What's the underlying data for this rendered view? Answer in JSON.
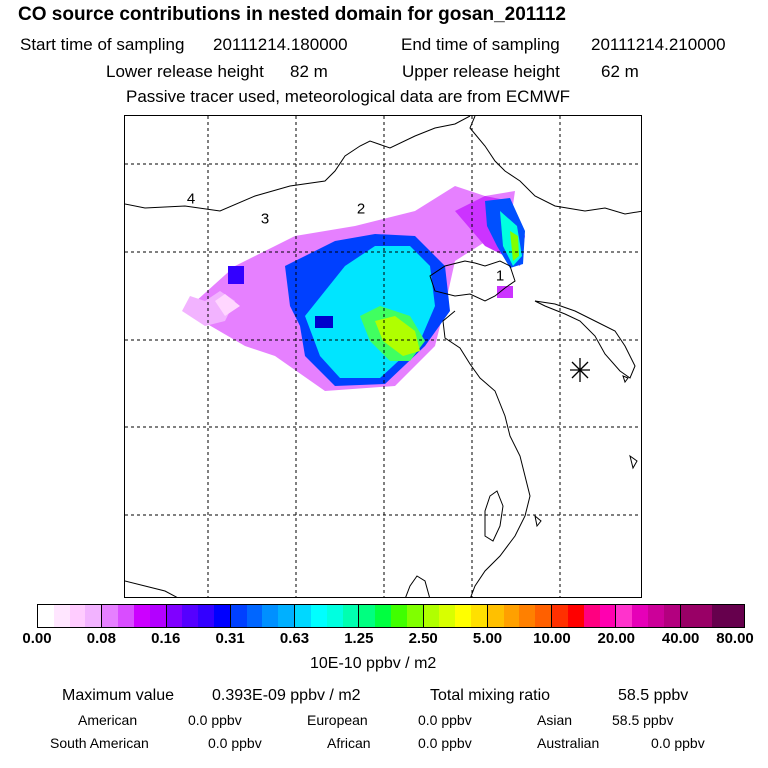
{
  "title": "CO  source contributions in nested domain for gosan_201112",
  "header": {
    "start_label": "Start time of sampling",
    "start_value": "20111214.180000",
    "end_label": "End time of sampling",
    "end_value": "20111214.210000",
    "lower_label": "Lower release height",
    "lower_value": "82 m",
    "upper_label": "Upper release height",
    "upper_value": "62 m",
    "note": "Passive tracer used, meteorological data are from ECMWF"
  },
  "map": {
    "region_labels": [
      "1",
      "2",
      "3",
      "4"
    ],
    "receptor": "gosan-receptor-marker"
  },
  "colorbar": {
    "ticks": [
      "0.00",
      "0.08",
      "0.16",
      "0.31",
      "0.63",
      "1.25",
      "2.50",
      "5.00",
      "10.00",
      "20.00",
      "40.00",
      "80.00"
    ],
    "units": "10E-10 ppbv / m2",
    "colors": [
      "#ffffff",
      "#ffe6ff",
      "#ffccff",
      "#f2b3ff",
      "#e680ff",
      "#d94dff",
      "#cc00ff",
      "#b300ff",
      "#8000ff",
      "#5500ff",
      "#3300ff",
      "#0000ff",
      "#0040ff",
      "#0066ff",
      "#0090ff",
      "#00b0ff",
      "#00d8ff",
      "#00ffff",
      "#00ffe0",
      "#00ffb0",
      "#00ff80",
      "#00ff40",
      "#40ff00",
      "#80ff00",
      "#b0ff00",
      "#d8ff00",
      "#ffff00",
      "#ffe000",
      "#ffc000",
      "#ffa000",
      "#ff8000",
      "#ff6000",
      "#ff3000",
      "#ff0000",
      "#ff0080",
      "#ff00b0",
      "#ff33cc",
      "#e600b8",
      "#cc0099",
      "#b3007f",
      "#990066",
      "#66004d"
    ]
  },
  "stats": {
    "max_label": "Maximum value",
    "max_value": "0.393E-09 ppbv / m2",
    "total_label": "Total mixing ratio",
    "total_value": "58.5 ppbv",
    "regions": [
      {
        "name": "American",
        "value": "0.0 ppbv"
      },
      {
        "name": "European",
        "value": "0.0 ppbv"
      },
      {
        "name": "Asian",
        "value": "58.5 ppbv"
      },
      {
        "name": "South American",
        "value": "0.0 ppbv"
      },
      {
        "name": "African",
        "value": "0.0 ppbv"
      },
      {
        "name": "Australian",
        "value": "0.0 ppbv"
      }
    ]
  }
}
